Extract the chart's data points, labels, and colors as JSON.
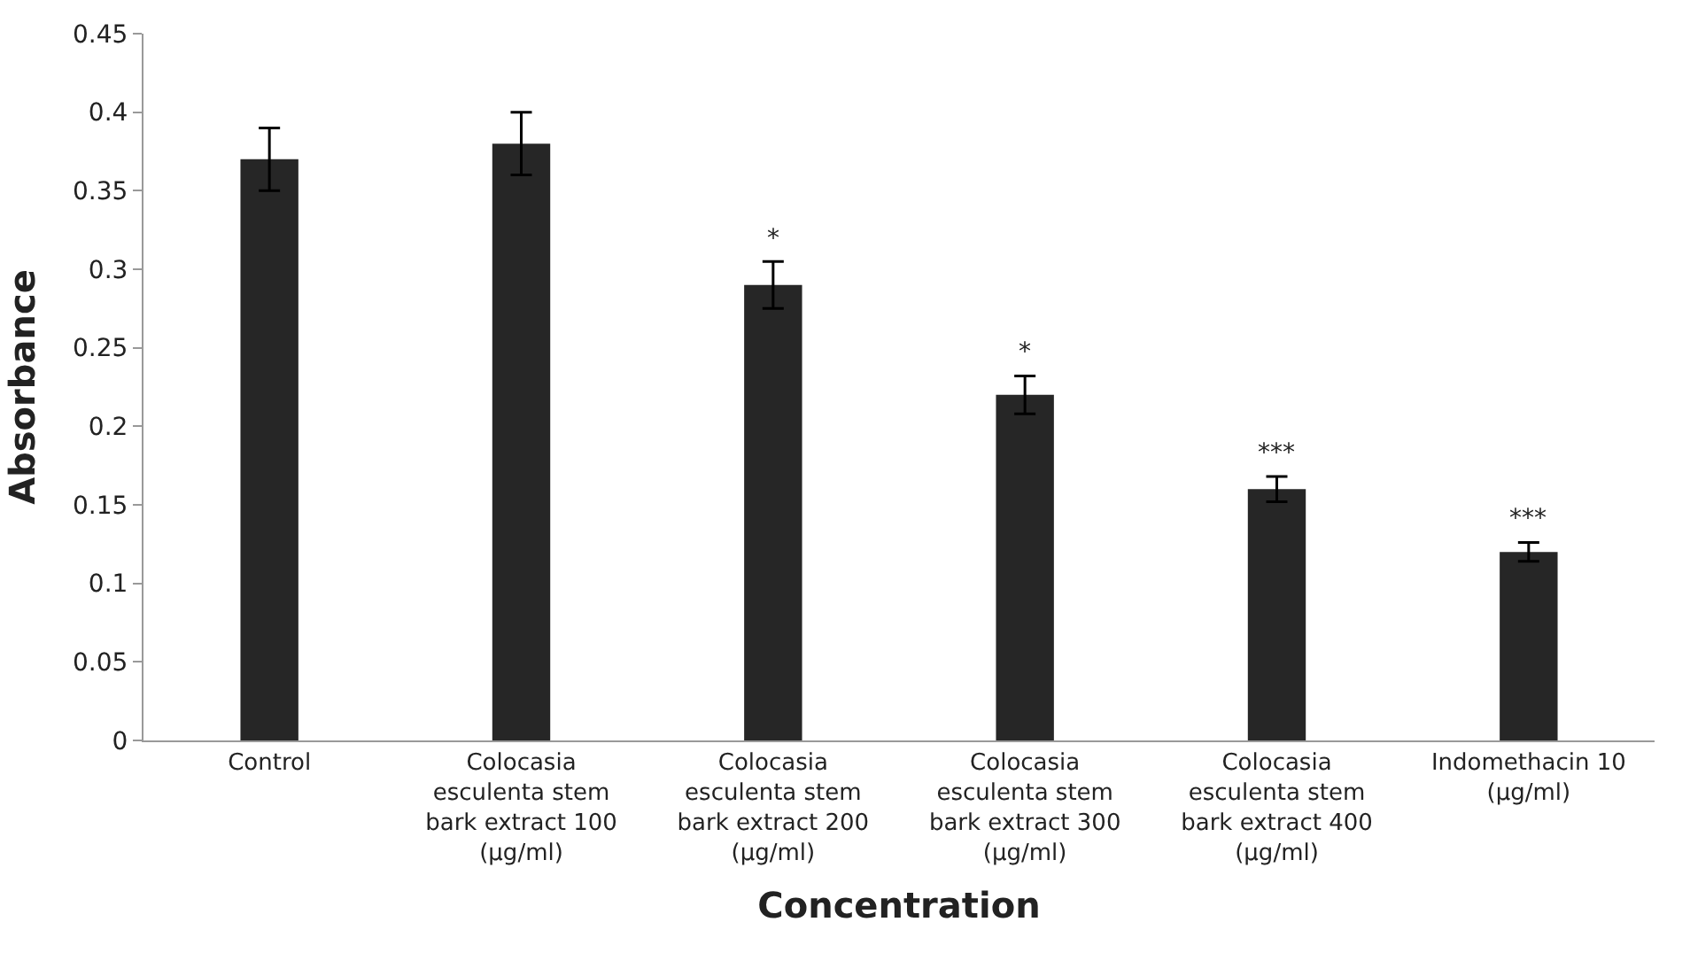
{
  "chart_data": {
    "type": "bar",
    "xlabel": "Concentration",
    "ylabel": "Absorbance",
    "categories": [
      "Control",
      "Colocasia esculenta stem bark extract 100 (µg/ml)",
      "Colocasia esculenta stem bark extract 200 (µg/ml)",
      "Colocasia esculenta stem bark extract 300 (µg/ml)",
      "Colocasia esculenta stem bark extract 400 (µg/ml)",
      "Indomethacin 10 (µg/ml)"
    ],
    "values": [
      0.37,
      0.38,
      0.29,
      0.22,
      0.16,
      0.12
    ],
    "errors": [
      0.02,
      0.02,
      0.015,
      0.012,
      0.008,
      0.006
    ],
    "color": "#262626",
    "ylim": [
      0,
      0.45
    ],
    "yticks": [
      0,
      0.05,
      0.1,
      0.15,
      0.2,
      0.25,
      0.3,
      0.35,
      0.4,
      0.45
    ],
    "annotations": [
      {
        "text": "*",
        "x": "Colocasia esculenta stem bark extract 200 (µg/ml)",
        "y": 0.305
      },
      {
        "text": "*",
        "x": "Colocasia esculenta stem bark extract 300 (µg/ml)",
        "y": 0.232
      },
      {
        "text": "***",
        "x": "Colocasia esculenta stem bark extract 400 (µg/ml)",
        "y": 0.168
      },
      {
        "text": "***",
        "x": "Indomethacin 10 (µg/ml)",
        "y": 0.126
      }
    ]
  }
}
